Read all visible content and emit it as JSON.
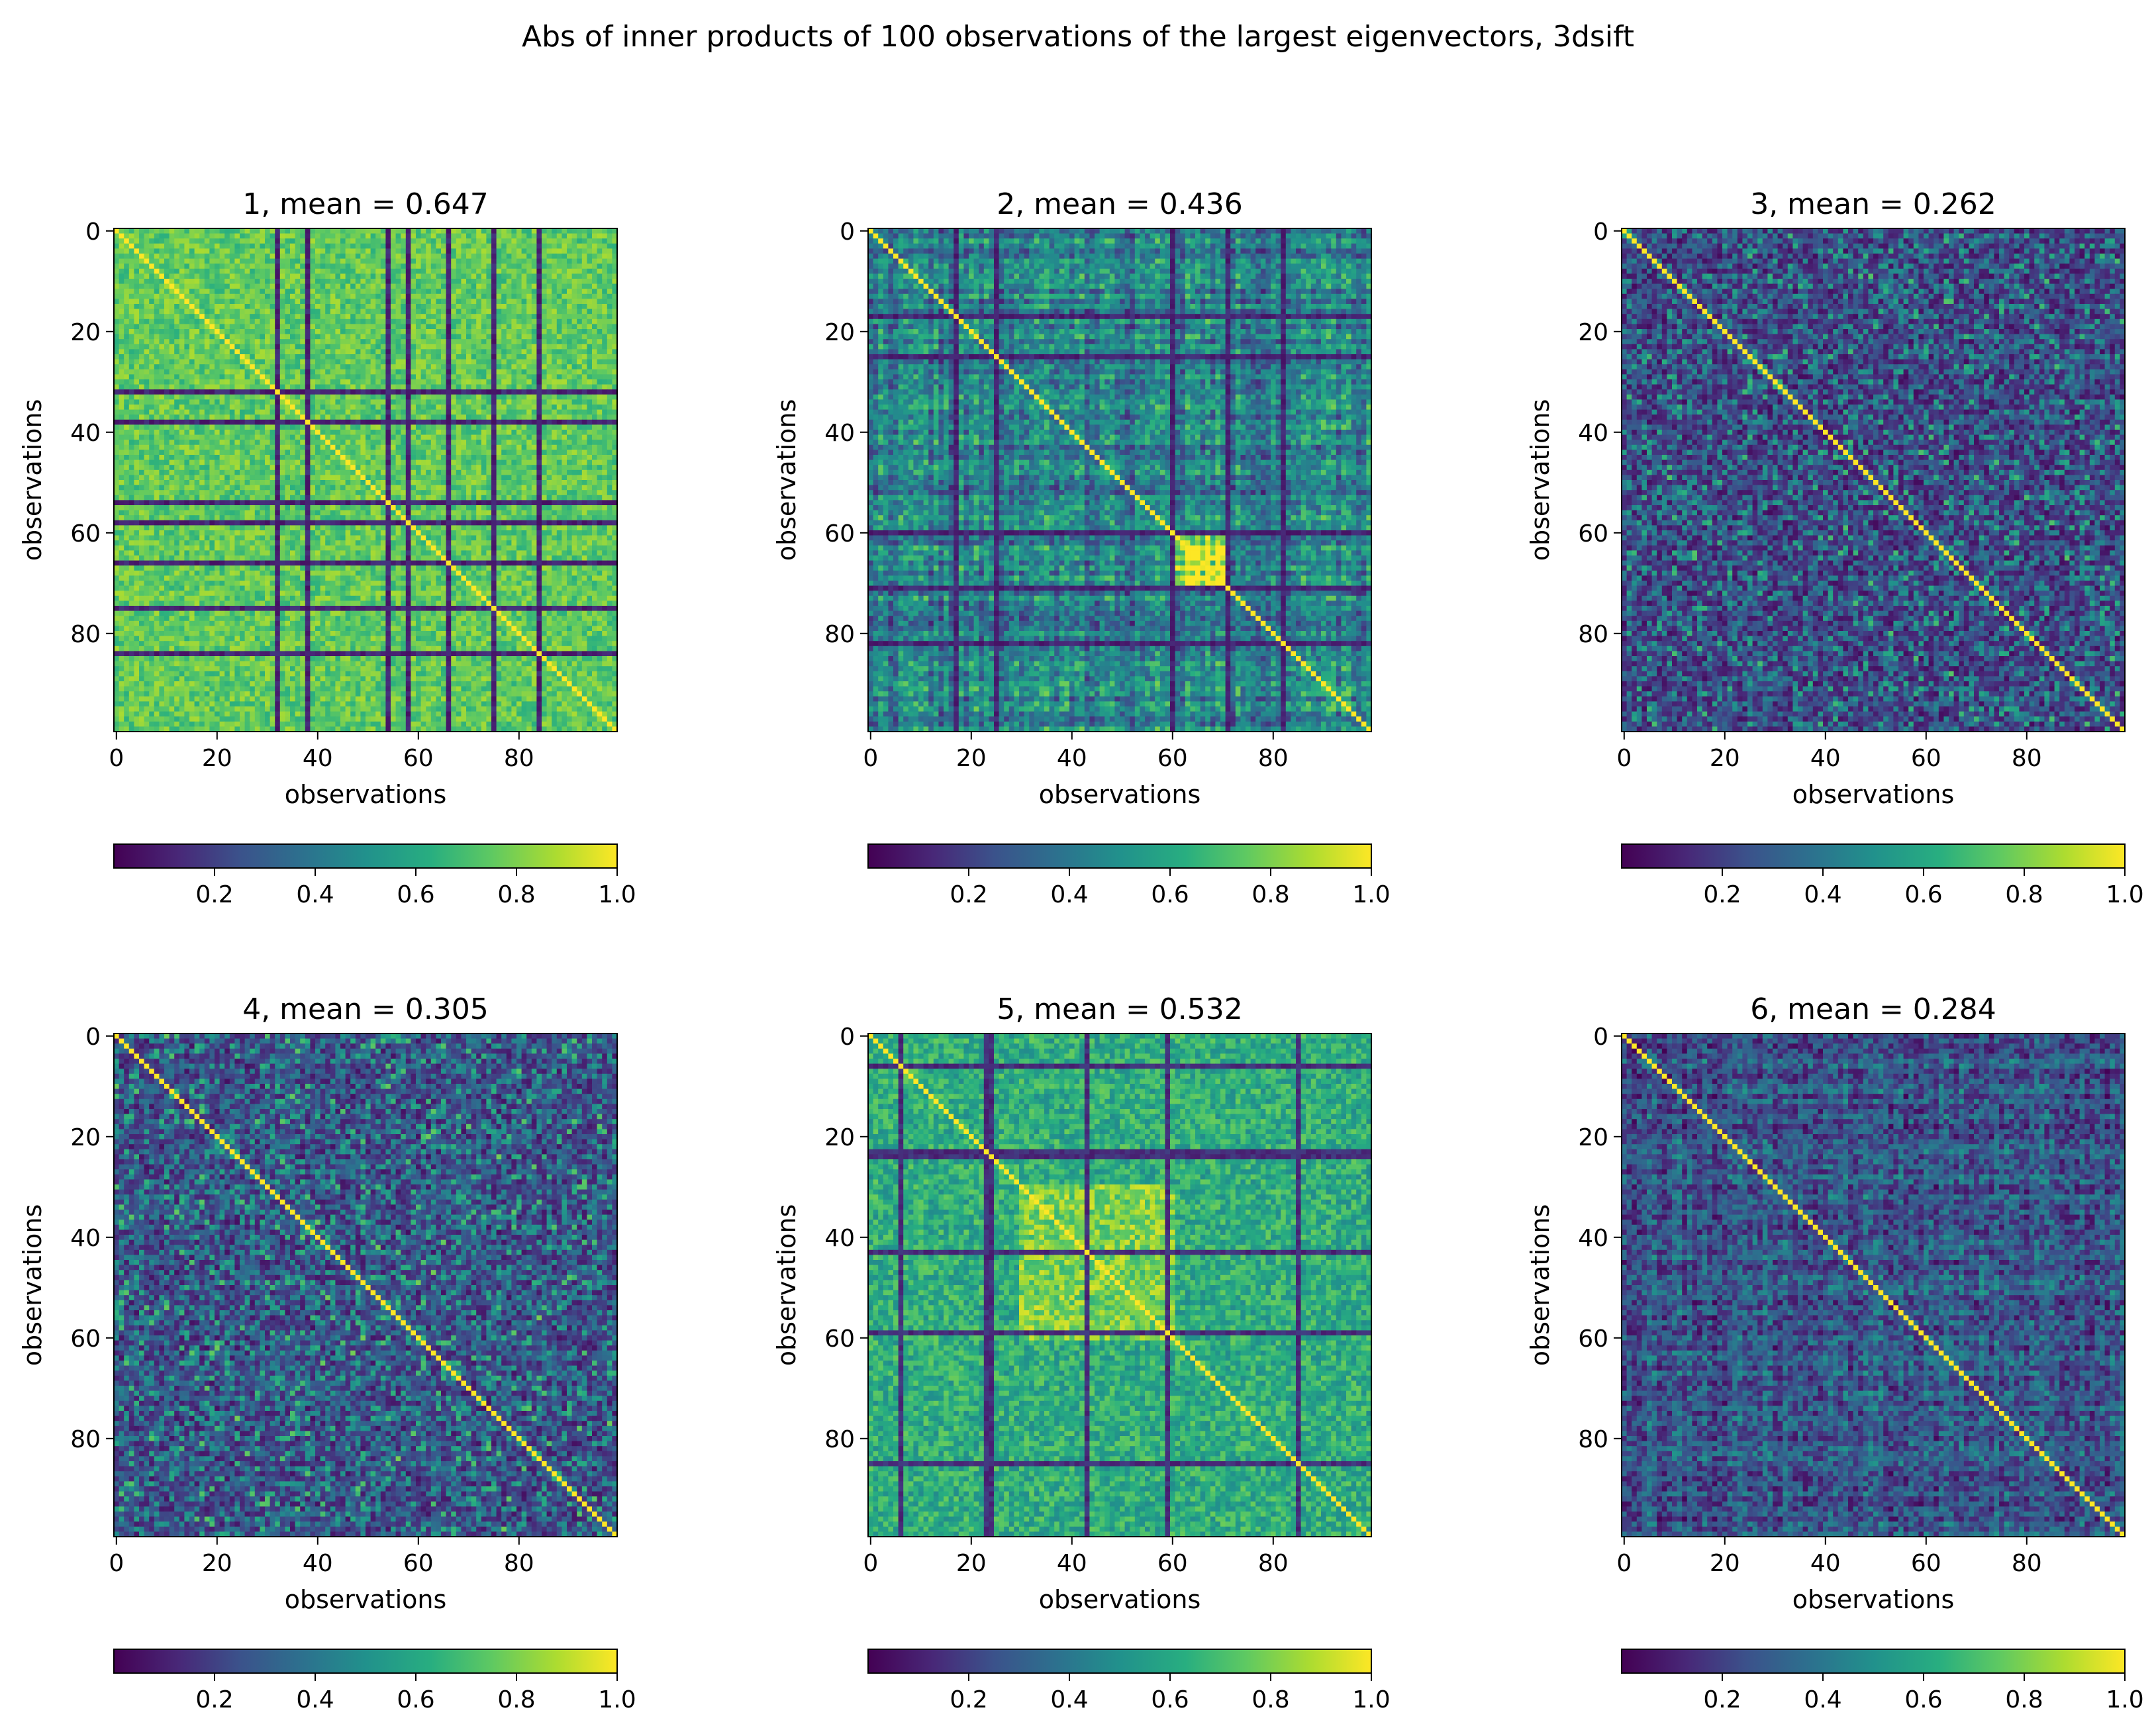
{
  "figure": {
    "suptitle": "Abs of inner products of 100 observations of the largest eigenvectors, 3dsift",
    "colormap": "viridis"
  },
  "chart_data": [
    {
      "type": "heatmap",
      "index": 1,
      "title": "1, mean = 0.647",
      "mean": 0.647,
      "xlabel": "observations",
      "ylabel": "observations",
      "x_ticks": [
        0,
        20,
        40,
        60,
        80
      ],
      "y_ticks": [
        0,
        20,
        40,
        60,
        80
      ],
      "xlim": [
        -0.5,
        99.5
      ],
      "ylim": [
        99.5,
        -0.5
      ],
      "matrix_size": 100,
      "colorbar": {
        "orientation": "horizontal",
        "range": [
          0.0,
          1.0
        ],
        "ticks": [
          0.2,
          0.4,
          0.6,
          0.8,
          1.0
        ],
        "tick_labels": [
          "0.2",
          "0.4",
          "0.6",
          "0.8",
          "1.0"
        ]
      },
      "pattern": "banded",
      "diag_value": 1.0,
      "background_value": 0.75,
      "low_value": 0.05,
      "noise": 0.12,
      "seed": 11,
      "low_indices": [
        32,
        38,
        54,
        58,
        66,
        75,
        84
      ],
      "hot_block": null,
      "block_value": null
    },
    {
      "type": "heatmap",
      "index": 2,
      "title": "2, mean = 0.436",
      "mean": 0.436,
      "xlabel": "observations",
      "ylabel": "observations",
      "x_ticks": [
        0,
        20,
        40,
        60,
        80
      ],
      "y_ticks": [
        0,
        20,
        40,
        60,
        80
      ],
      "xlim": [
        -0.5,
        99.5
      ],
      "ylim": [
        99.5,
        -0.5
      ],
      "matrix_size": 100,
      "colorbar": {
        "orientation": "horizontal",
        "range": [
          0.0,
          1.0
        ],
        "ticks": [
          0.2,
          0.4,
          0.6,
          0.8,
          1.0
        ],
        "tick_labels": [
          "0.2",
          "0.4",
          "0.6",
          "0.8",
          "1.0"
        ]
      },
      "pattern": "rowcol",
      "diag_value": 1.0,
      "background_value": 0.45,
      "low_value": 0.05,
      "noise": 0.18,
      "seed": 22,
      "low_indices": [
        17,
        25,
        60,
        71,
        82
      ],
      "hot_block": [
        60,
        70
      ],
      "block_value": 0.95
    },
    {
      "type": "heatmap",
      "index": 3,
      "title": "3, mean = 0.262",
      "mean": 0.262,
      "xlabel": "observations",
      "ylabel": "observations",
      "x_ticks": [
        0,
        20,
        40,
        60,
        80
      ],
      "y_ticks": [
        0,
        20,
        40,
        60,
        80
      ],
      "xlim": [
        -0.5,
        99.5
      ],
      "ylim": [
        99.5,
        -0.5
      ],
      "matrix_size": 100,
      "colorbar": {
        "orientation": "horizontal",
        "range": [
          0.0,
          1.0
        ],
        "ticks": [
          0.2,
          0.4,
          0.6,
          0.8,
          1.0
        ],
        "tick_labels": [
          "0.2",
          "0.4",
          "0.6",
          "0.8",
          "1.0"
        ]
      },
      "pattern": "noise",
      "diag_value": 1.0,
      "background_value": 0.26,
      "low_value": 0.02,
      "noise": 0.2,
      "seed": 33,
      "low_indices": [],
      "hot_block": null,
      "block_value": null
    },
    {
      "type": "heatmap",
      "index": 4,
      "title": "4, mean = 0.305",
      "mean": 0.305,
      "xlabel": "observations",
      "ylabel": "observations",
      "x_ticks": [
        0,
        20,
        40,
        60,
        80
      ],
      "y_ticks": [
        0,
        20,
        40,
        60,
        80
      ],
      "xlim": [
        -0.5,
        99.5
      ],
      "ylim": [
        99.5,
        -0.5
      ],
      "matrix_size": 100,
      "colorbar": {
        "orientation": "horizontal",
        "range": [
          0.0,
          1.0
        ],
        "ticks": [
          0.2,
          0.4,
          0.6,
          0.8,
          1.0
        ],
        "tick_labels": [
          "0.2",
          "0.4",
          "0.6",
          "0.8",
          "1.0"
        ]
      },
      "pattern": "noise",
      "diag_value": 1.0,
      "background_value": 0.3,
      "low_value": 0.02,
      "noise": 0.2,
      "seed": 44,
      "low_indices": [],
      "hot_block": null,
      "block_value": null
    },
    {
      "type": "heatmap",
      "index": 5,
      "title": "5, mean = 0.532",
      "mean": 0.532,
      "xlabel": "observations",
      "ylabel": "observations",
      "x_ticks": [
        0,
        20,
        40,
        60,
        80
      ],
      "y_ticks": [
        0,
        20,
        40,
        60,
        80
      ],
      "xlim": [
        -0.5,
        99.5
      ],
      "ylim": [
        99.5,
        -0.5
      ],
      "matrix_size": 100,
      "colorbar": {
        "orientation": "horizontal",
        "range": [
          0.0,
          1.0
        ],
        "ticks": [
          0.2,
          0.4,
          0.6,
          0.8,
          1.0
        ],
        "tick_labels": [
          "0.2",
          "0.4",
          "0.6",
          "0.8",
          "1.0"
        ]
      },
      "pattern": "banded",
      "diag_value": 1.0,
      "background_value": 0.62,
      "low_value": 0.08,
      "noise": 0.15,
      "seed": 55,
      "low_indices": [
        6,
        23,
        24,
        43,
        59,
        85
      ],
      "hot_block": [
        30,
        60
      ],
      "block_value": 0.8
    },
    {
      "type": "heatmap",
      "index": 6,
      "title": "6, mean = 0.284",
      "mean": 0.284,
      "xlabel": "observations",
      "ylabel": "observations",
      "x_ticks": [
        0,
        20,
        40,
        60,
        80
      ],
      "y_ticks": [
        0,
        20,
        40,
        60,
        80
      ],
      "xlim": [
        -0.5,
        99.5
      ],
      "ylim": [
        99.5,
        -0.5
      ],
      "matrix_size": 100,
      "colorbar": {
        "orientation": "horizontal",
        "range": [
          0.0,
          1.0
        ],
        "ticks": [
          0.2,
          0.4,
          0.6,
          0.8,
          1.0
        ],
        "tick_labels": [
          "0.2",
          "0.4",
          "0.6",
          "0.8",
          "1.0"
        ]
      },
      "pattern": "rowcol",
      "diag_value": 1.0,
      "background_value": 0.28,
      "low_value": 0.03,
      "noise": 0.18,
      "seed": 66,
      "low_indices": [],
      "hot_block": null,
      "block_value": null
    }
  ]
}
